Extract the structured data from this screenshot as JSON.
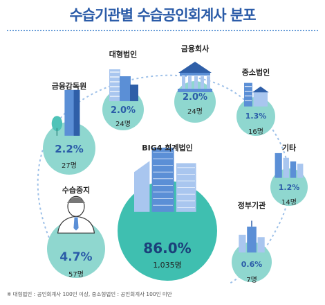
{
  "title": "수습기관별 수습공인회계사 분포",
  "footnote": "※ 대형법인 : 공인회계사 100인 이상, 중소형법인 : 공인회계사 100인 미만",
  "colors": {
    "title": "#2a5ba8",
    "bubble_fill": "#8fd7cf",
    "bubble_big": "#3fbfb0",
    "percent_text": "#2a5ba8",
    "building": "#5b8fd6",
    "dotted_line": "#9dc0e8"
  },
  "chart_data": {
    "type": "bubble",
    "title": "수습기관별 수습공인회계사 분포",
    "categories": [
      "대형법인",
      "금융회사",
      "중소법인",
      "기타",
      "정부기관",
      "BIG4 회계법인",
      "수습중지",
      "금융감독원"
    ],
    "values": [
      2.0,
      2.0,
      1.3,
      1.2,
      0.6,
      86.0,
      4.7,
      2.2
    ],
    "counts": [
      24,
      24,
      16,
      14,
      7,
      1035,
      57,
      27
    ],
    "percent_labels": [
      "2.0%",
      "2.0%",
      "1.3%",
      "1.2%",
      "0.6%",
      "86.0%",
      "4.7%",
      "2.2%"
    ],
    "count_labels": [
      "24명",
      "24명",
      "16명",
      "14명",
      "7명",
      "1,035명",
      "57명",
      "27명"
    ],
    "icons": [
      "office-tower-icon",
      "bank-icon",
      "small-office-icon",
      "building-group-icon",
      "government-building-icon",
      "skyscraper-group-icon",
      "person-icon",
      "tower-with-tree-icon"
    ]
  }
}
